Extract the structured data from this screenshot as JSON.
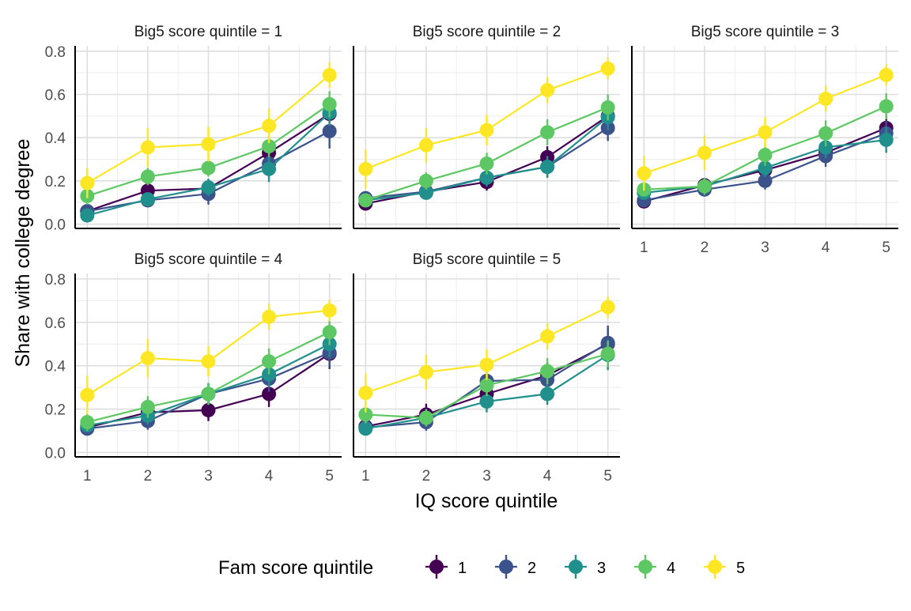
{
  "chart_data": {
    "type": "line",
    "layout": "faceted 3x2 grid, error bars on points",
    "ylabel": "Share with college degree",
    "xlabel": "IQ score quintile",
    "x": [
      1,
      2,
      3,
      4,
      5
    ],
    "ylim": [
      0,
      0.8
    ],
    "yticks": [
      "0.0",
      "0.2",
      "0.4",
      "0.6",
      "0.8"
    ],
    "xticks": [
      "1",
      "2",
      "3",
      "4",
      "5"
    ],
    "grid": true,
    "legend": {
      "title": "Fam score quintile",
      "position": "bottom",
      "entries": [
        "1",
        "2",
        "3",
        "4",
        "5"
      ]
    },
    "colors": [
      "#440154",
      "#3b528b",
      "#21908d",
      "#5dc863",
      "#fde725"
    ],
    "panels": [
      {
        "title": "Big5 score quintile = 1",
        "series": [
          {
            "name": "1",
            "values": [
              0.06,
              0.155,
              0.165,
              0.33,
              0.51
            ],
            "err": [
              0.02,
              0.03,
              0.04,
              0.05,
              0.06
            ]
          },
          {
            "name": "2",
            "values": [
              0.06,
              0.11,
              0.14,
              0.28,
              0.43
            ],
            "err": [
              0.02,
              0.03,
              0.05,
              0.05,
              0.08
            ]
          },
          {
            "name": "3",
            "values": [
              0.04,
              0.115,
              0.17,
              0.255,
              0.515
            ],
            "err": [
              0.02,
              0.03,
              0.04,
              0.06,
              0.06
            ]
          },
          {
            "name": "4",
            "values": [
              0.13,
              0.22,
              0.26,
              0.36,
              0.555
            ],
            "err": [
              0.04,
              0.04,
              0.04,
              0.05,
              0.06
            ]
          },
          {
            "name": "5",
            "values": [
              0.19,
              0.355,
              0.37,
              0.455,
              0.69
            ],
            "err": [
              0.07,
              0.09,
              0.08,
              0.08,
              0.06
            ]
          }
        ]
      },
      {
        "title": "Big5 score quintile = 2",
        "series": [
          {
            "name": "1",
            "values": [
              0.095,
              0.15,
              0.195,
              0.31,
              0.5
            ],
            "err": [
              0.02,
              0.03,
              0.04,
              0.05,
              0.06
            ]
          },
          {
            "name": "2",
            "values": [
              0.12,
              0.15,
              0.215,
              0.265,
              0.445
            ],
            "err": [
              0.02,
              0.03,
              0.04,
              0.05,
              0.06
            ]
          },
          {
            "name": "3",
            "values": [
              0.11,
              0.145,
              0.215,
              0.265,
              0.495
            ],
            "err": [
              0.02,
              0.03,
              0.04,
              0.05,
              0.06
            ]
          },
          {
            "name": "4",
            "values": [
              0.11,
              0.2,
              0.28,
              0.425,
              0.54
            ],
            "err": [
              0.03,
              0.04,
              0.05,
              0.06,
              0.06
            ]
          },
          {
            "name": "5",
            "values": [
              0.255,
              0.365,
              0.435,
              0.62,
              0.72
            ],
            "err": [
              0.09,
              0.08,
              0.07,
              0.06,
              0.05
            ]
          }
        ]
      },
      {
        "title": "Big5 score quintile = 3",
        "series": [
          {
            "name": "1",
            "values": [
              0.105,
              0.18,
              0.25,
              0.33,
              0.445
            ],
            "err": [
              0.02,
              0.03,
              0.04,
              0.05,
              0.06
            ]
          },
          {
            "name": "2",
            "values": [
              0.11,
              0.16,
              0.2,
              0.315,
              0.42
            ],
            "err": [
              0.02,
              0.03,
              0.04,
              0.05,
              0.06
            ]
          },
          {
            "name": "3",
            "values": [
              0.145,
              0.175,
              0.26,
              0.355,
              0.39
            ],
            "err": [
              0.02,
              0.03,
              0.04,
              0.05,
              0.06
            ]
          },
          {
            "name": "4",
            "values": [
              0.16,
              0.175,
              0.32,
              0.42,
              0.545
            ],
            "err": [
              0.03,
              0.04,
              0.05,
              0.06,
              0.06
            ]
          },
          {
            "name": "5",
            "values": [
              0.235,
              0.33,
              0.425,
              0.58,
              0.69
            ],
            "err": [
              0.08,
              0.08,
              0.07,
              0.06,
              0.05
            ]
          }
        ]
      },
      {
        "title": "Big5 score quintile = 4",
        "series": [
          {
            "name": "1",
            "values": [
              0.115,
              0.185,
              0.195,
              0.27,
              0.455
            ],
            "err": [
              0.02,
              0.03,
              0.05,
              0.06,
              0.07
            ]
          },
          {
            "name": "2",
            "values": [
              0.11,
              0.145,
              0.27,
              0.34,
              0.46
            ],
            "err": [
              0.02,
              0.04,
              0.05,
              0.06,
              0.07
            ]
          },
          {
            "name": "3",
            "values": [
              0.125,
              0.17,
              0.27,
              0.36,
              0.5
            ],
            "err": [
              0.02,
              0.04,
              0.05,
              0.06,
              0.06
            ]
          },
          {
            "name": "4",
            "values": [
              0.14,
              0.21,
              0.27,
              0.42,
              0.555
            ],
            "err": [
              0.04,
              0.05,
              0.05,
              0.06,
              0.06
            ]
          },
          {
            "name": "5",
            "values": [
              0.265,
              0.435,
              0.42,
              0.625,
              0.655
            ],
            "err": [
              0.09,
              0.09,
              0.07,
              0.06,
              0.05
            ]
          }
        ]
      },
      {
        "title": "Big5 score quintile = 5",
        "series": [
          {
            "name": "1",
            "values": [
              0.12,
              0.175,
              0.27,
              0.355,
              0.5
            ],
            "err": [
              0.02,
              0.05,
              0.06,
              0.06,
              0.07
            ]
          },
          {
            "name": "2",
            "values": [
              0.115,
              0.14,
              0.33,
              0.335,
              0.505
            ],
            "err": [
              0.02,
              0.04,
              0.06,
              0.06,
              0.08
            ]
          },
          {
            "name": "3",
            "values": [
              0.11,
              0.16,
              0.235,
              0.27,
              0.45
            ],
            "err": [
              0.02,
              0.04,
              0.05,
              0.05,
              0.07
            ]
          },
          {
            "name": "4",
            "values": [
              0.175,
              0.16,
              0.31,
              0.375,
              0.455
            ],
            "err": [
              0.04,
              0.04,
              0.05,
              0.06,
              0.06
            ]
          },
          {
            "name": "5",
            "values": [
              0.275,
              0.37,
              0.405,
              0.535,
              0.67
            ],
            "err": [
              0.09,
              0.08,
              0.07,
              0.06,
              0.05
            ]
          }
        ]
      }
    ]
  }
}
